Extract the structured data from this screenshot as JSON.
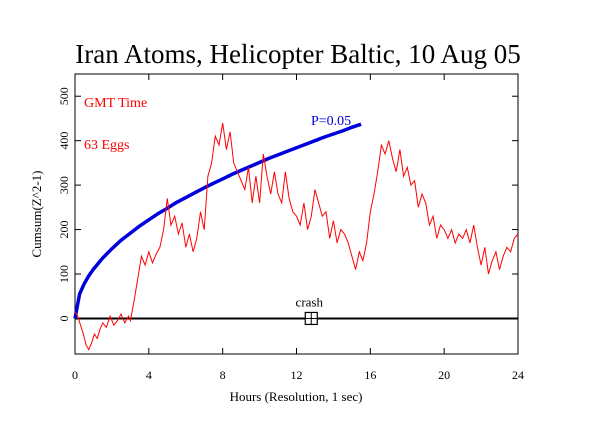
{
  "chart_data": {
    "type": "line",
    "title": "Iran Atoms, Helicopter Baltic, 10 Aug 05",
    "xlabel": "Hours (Resolution, 1 sec)",
    "ylabel": "Cumsum(Z^2-1)",
    "xlim": [
      0,
      24
    ],
    "ylim": [
      -80,
      550
    ],
    "xticks": [
      0,
      4,
      8,
      12,
      16,
      20,
      24
    ],
    "xtick_labels": [
      "0",
      "4",
      "8",
      "12",
      "16",
      "20",
      "24"
    ],
    "yticks": [
      0,
      100,
      200,
      300,
      400,
      500
    ],
    "ytick_labels": [
      "0",
      "100",
      "200",
      "300",
      "400",
      "500"
    ],
    "grid": false,
    "annotations": {
      "time_label": "GMT Time",
      "eggs_label": "63 Eggs",
      "p_label": "P=0.05",
      "event_label": "crash"
    },
    "event": {
      "x": 12.8,
      "y": 0
    },
    "reference_line": {
      "y": 0
    },
    "colors": {
      "cumsum": "#ff0000",
      "significance": "#0000dd",
      "axis": "#000000"
    },
    "series": [
      {
        "role": "cumsum",
        "x": [
          0,
          0.15,
          0.3,
          0.45,
          0.6,
          0.75,
          0.9,
          1.05,
          1.2,
          1.35,
          1.5,
          1.7,
          1.9,
          2.1,
          2.3,
          2.5,
          2.7,
          2.9,
          3.0,
          3.2,
          3.4,
          3.6,
          3.8,
          4.0,
          4.2,
          4.4,
          4.6,
          4.8,
          5.0,
          5.2,
          5.4,
          5.6,
          5.8,
          6.0,
          6.2,
          6.4,
          6.6,
          6.8,
          7.0,
          7.2,
          7.4,
          7.6,
          7.8,
          8.0,
          8.2,
          8.4,
          8.6,
          8.8,
          9.0,
          9.2,
          9.4,
          9.6,
          9.8,
          10.0,
          10.2,
          10.4,
          10.6,
          10.8,
          11.0,
          11.2,
          11.4,
          11.6,
          11.8,
          12.0,
          12.2,
          12.4,
          12.6,
          12.8,
          13.0,
          13.2,
          13.4,
          13.6,
          13.8,
          14.0,
          14.2,
          14.4,
          14.6,
          14.8,
          15.0,
          15.2,
          15.4,
          15.6,
          15.8,
          16.0,
          16.2,
          16.4,
          16.6,
          16.8,
          17.0,
          17.2,
          17.4,
          17.6,
          17.8,
          18.0,
          18.2,
          18.4,
          18.6,
          18.8,
          19.0,
          19.2,
          19.4,
          19.6,
          19.8,
          20.0,
          20.2,
          20.4,
          20.6,
          20.8,
          21.0,
          21.2,
          21.4,
          21.6,
          21.8,
          22.0,
          22.2,
          22.4,
          22.6,
          22.8,
          23.0,
          23.2,
          23.4,
          23.6,
          23.8,
          24.0
        ],
        "values": [
          15,
          5,
          -15,
          -35,
          -60,
          -70,
          -55,
          -35,
          -45,
          -25,
          -10,
          -20,
          5,
          -15,
          -5,
          10,
          -10,
          5,
          -5,
          40,
          90,
          140,
          120,
          150,
          125,
          145,
          160,
          200,
          270,
          210,
          230,
          190,
          215,
          160,
          190,
          150,
          180,
          240,
          200,
          320,
          350,
          410,
          390,
          440,
          380,
          420,
          350,
          330,
          310,
          290,
          340,
          260,
          320,
          260,
          370,
          320,
          280,
          330,
          280,
          260,
          330,
          270,
          240,
          230,
          210,
          260,
          200,
          230,
          290,
          260,
          230,
          240,
          180,
          220,
          170,
          200,
          190,
          170,
          140,
          110,
          150,
          130,
          170,
          240,
          280,
          330,
          390,
          370,
          400,
          360,
          330,
          380,
          320,
          340,
          300,
          310,
          250,
          280,
          260,
          210,
          230,
          180,
          210,
          200,
          180,
          200,
          170,
          190,
          180,
          200,
          170,
          210,
          160,
          120,
          160,
          100,
          130,
          150,
          110,
          140,
          160,
          150,
          180,
          190
        ]
      },
      {
        "role": "significance",
        "x": [
          0,
          0.25,
          0.5,
          0.75,
          1,
          1.5,
          2,
          2.5,
          3,
          3.5,
          4,
          4.5,
          5,
          5.5,
          6,
          6.5,
          7,
          7.5,
          8,
          8.5,
          9,
          9.5,
          10,
          10.5,
          11,
          11.5,
          12,
          12.5,
          13,
          13.5,
          14,
          14.5,
          15,
          15.5
        ],
        "values": [
          0,
          55,
          78,
          96,
          111,
          136,
          157,
          176,
          192,
          208,
          222,
          236,
          248,
          261,
          272,
          283,
          294,
          304,
          314,
          324,
          333,
          342,
          351,
          360,
          368,
          376,
          384,
          392,
          400,
          408,
          415,
          422,
          430,
          437
        ]
      }
    ]
  }
}
